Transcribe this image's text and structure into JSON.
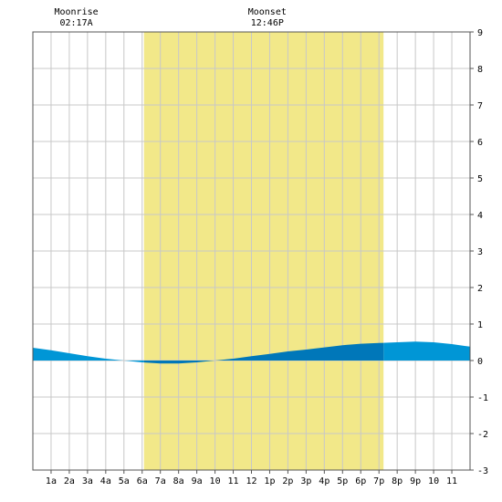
{
  "chart_data": {
    "type": "area",
    "moon_events": [
      {
        "label": "Moonrise",
        "time": "02:17A",
        "hour": 2.283
      },
      {
        "label": "Moonset",
        "time": "12:46P",
        "hour": 12.767
      }
    ],
    "daylight": {
      "start_hour": 6.1,
      "end_hour": 19.25
    },
    "x_range": [
      0,
      24
    ],
    "ylim": [
      -3,
      9
    ],
    "y_ticks": [
      "-3",
      "-2",
      "-1",
      "0",
      "1",
      "2",
      "3",
      "4",
      "5",
      "6",
      "7",
      "8",
      "9"
    ],
    "x_ticks": [
      {
        "label": "1a",
        "hour": 1
      },
      {
        "label": "2a",
        "hour": 2
      },
      {
        "label": "3a",
        "hour": 3
      },
      {
        "label": "4a",
        "hour": 4
      },
      {
        "label": "5a",
        "hour": 5
      },
      {
        "label": "6a",
        "hour": 6
      },
      {
        "label": "7a",
        "hour": 7
      },
      {
        "label": "8a",
        "hour": 8
      },
      {
        "label": "9a",
        "hour": 9
      },
      {
        "label": "10",
        "hour": 10
      },
      {
        "label": "11",
        "hour": 11
      },
      {
        "label": "12",
        "hour": 12
      },
      {
        "label": "1p",
        "hour": 13
      },
      {
        "label": "2p",
        "hour": 14
      },
      {
        "label": "3p",
        "hour": 15
      },
      {
        "label": "4p",
        "hour": 16
      },
      {
        "label": "5p",
        "hour": 17
      },
      {
        "label": "6p",
        "hour": 18
      },
      {
        "label": "7p",
        "hour": 19
      },
      {
        "label": "8p",
        "hour": 20
      },
      {
        "label": "9p",
        "hour": 21
      },
      {
        "label": "10",
        "hour": 22
      },
      {
        "label": "11",
        "hour": 23
      }
    ],
    "series": [
      {
        "x": [
          0,
          1,
          2,
          3,
          4,
          5,
          6,
          7,
          8,
          9,
          10,
          11,
          12,
          13,
          14,
          15,
          16,
          17,
          18,
          19,
          20,
          21,
          22,
          23,
          24
        ],
        "values": [
          0.35,
          0.28,
          0.2,
          0.12,
          0.05,
          0.0,
          -0.05,
          -0.08,
          -0.08,
          -0.05,
          0.0,
          0.05,
          0.12,
          0.18,
          0.25,
          0.3,
          0.36,
          0.42,
          0.46,
          0.48,
          0.5,
          0.52,
          0.5,
          0.45,
          0.38
        ]
      }
    ],
    "grid": true,
    "colors": {
      "daylight": "#f2e889",
      "fill_night": "#0096d6",
      "fill_day": "#0077b9",
      "grid": "#c8c8c8",
      "axis": "#555555"
    }
  }
}
